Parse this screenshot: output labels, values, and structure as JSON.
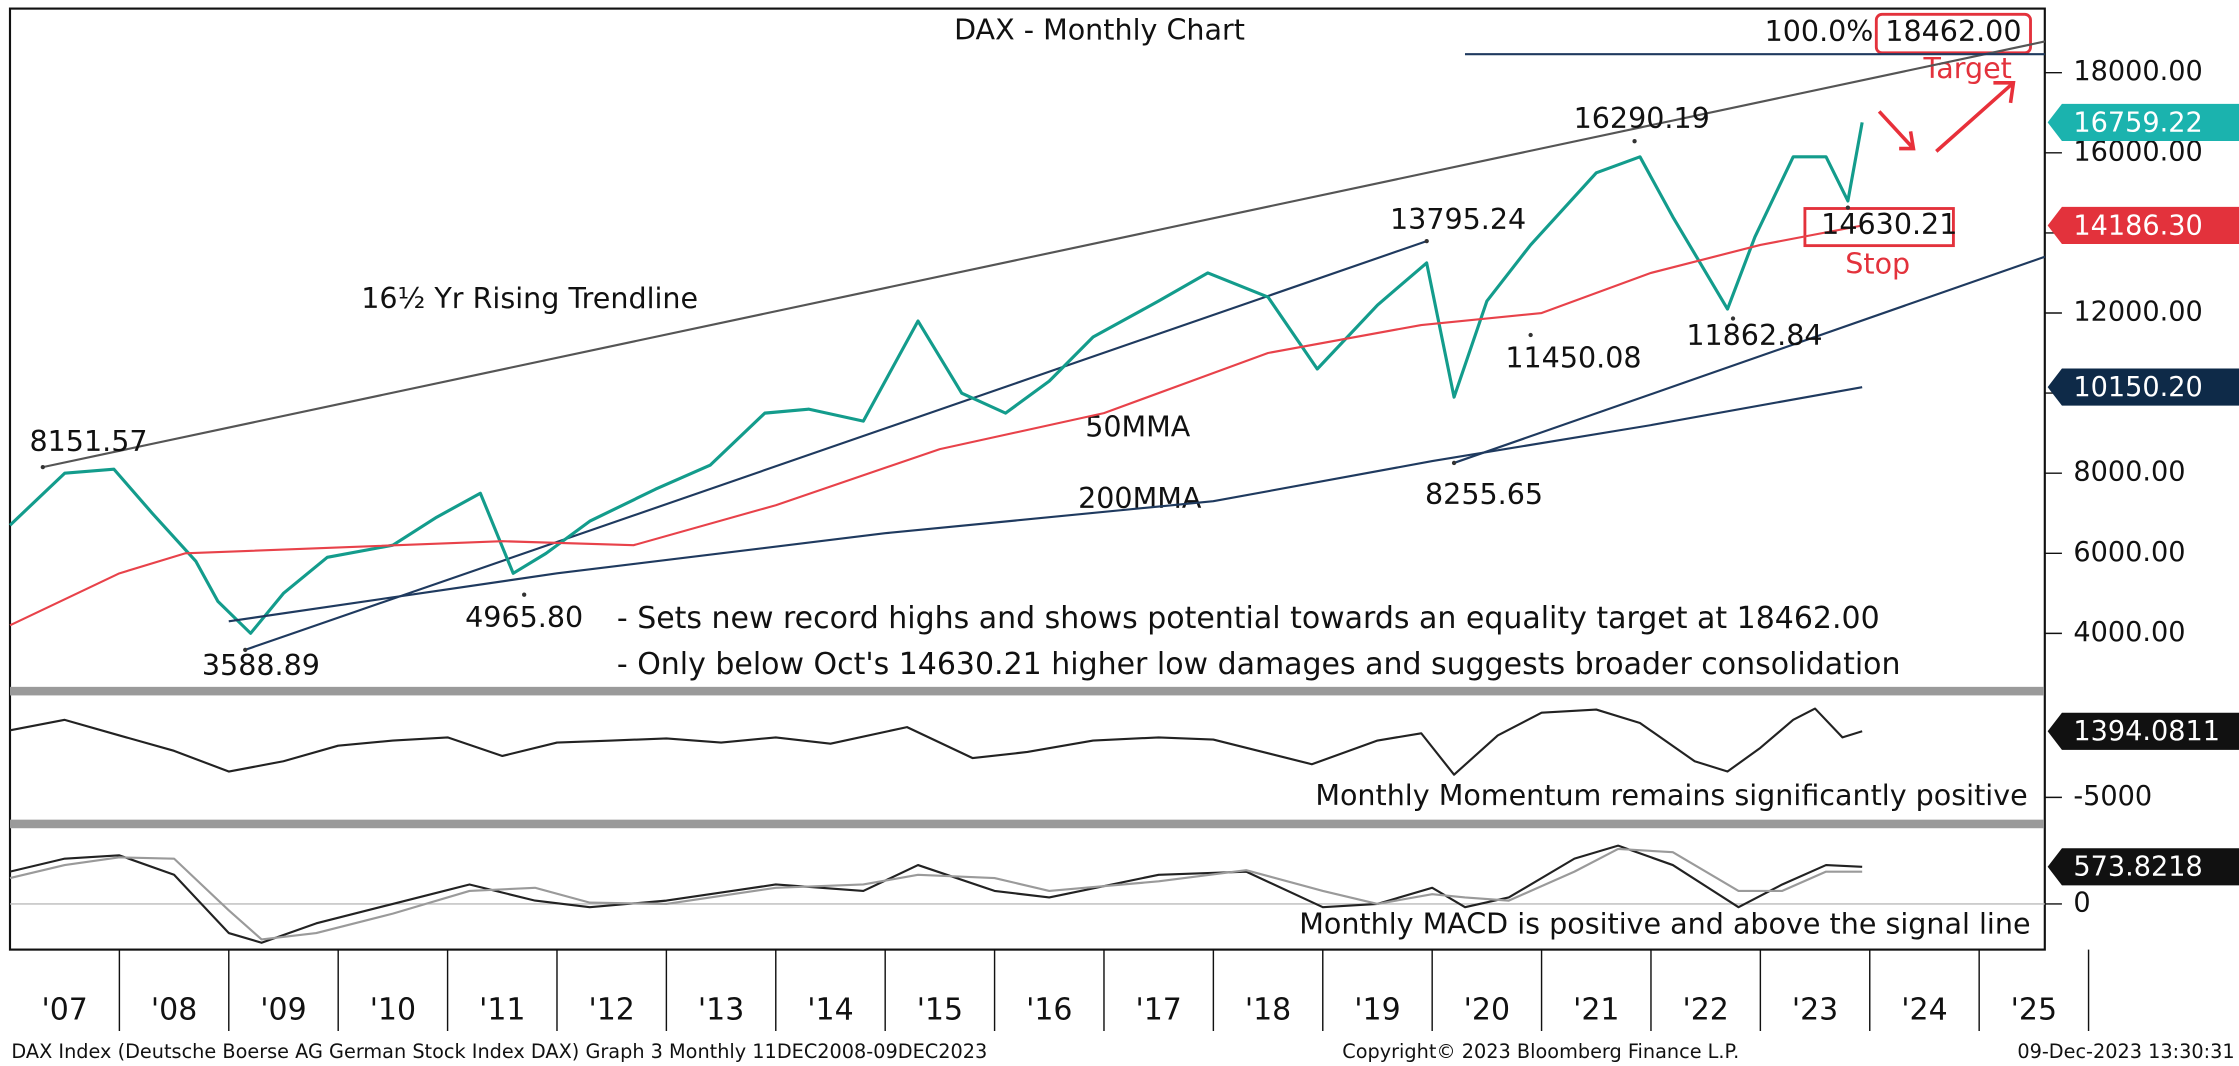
{
  "chart_data": [
    {
      "type": "line",
      "title": "DAX - Monthly Chart",
      "xlim": [
        2007.0,
        2025.6
      ],
      "ylim": [
        2700,
        19530
      ],
      "yticks": [
        {
          "value": 4000,
          "label": "4000.00"
        },
        {
          "value": 6000,
          "label": "6000.00"
        },
        {
          "value": 8000,
          "label": "8000.00"
        },
        {
          "value": 10000,
          "label": "10000.00"
        },
        {
          "value": 12000,
          "label": "12000.00"
        },
        {
          "value": 14000,
          "label": "14000.00"
        },
        {
          "value": 16000,
          "label": "16000.00"
        },
        {
          "value": 18000,
          "label": "18000.00"
        }
      ],
      "series": [
        {
          "color": "#139c8c",
          "x": [
            2007.0,
            2007.5,
            2007.95,
            2008.3,
            2008.7,
            2008.9,
            2009.2,
            2009.5,
            2009.9,
            2010.5,
            2010.9,
            2011.3,
            2011.6,
            2011.9,
            2012.3,
            2012.9,
            2013.4,
            2013.9,
            2014.3,
            2014.8,
            2015.3,
            2015.7,
            2016.1,
            2016.5,
            2016.9,
            2017.5,
            2017.95,
            2018.5,
            2018.95,
            2019.5,
            2019.95,
            2020.2,
            2020.5,
            2020.9,
            2021.5,
            2021.9,
            2022.2,
            2022.7,
            2022.95,
            2023.3,
            2023.6,
            2023.8,
            2023.93
          ],
          "values": [
            6700,
            8000,
            8100,
            7000,
            5800,
            4800,
            4000,
            5000,
            5900,
            6200,
            6900,
            7500,
            5500,
            6000,
            6800,
            7600,
            8200,
            9500,
            9600,
            9300,
            11800,
            10000,
            9500,
            10300,
            11400,
            12300,
            13000,
            12400,
            10600,
            12200,
            13250,
            9900,
            12300,
            13700,
            15500,
            15900,
            14400,
            12100,
            13900,
            15900,
            15900,
            14800,
            16759.22
          ]
        },
        {
          "name": "50MMA",
          "color": "#e8424a",
          "x": [
            2007.0,
            2008.0,
            2008.6,
            2011.5,
            2012.7,
            2014.0,
            2015.5,
            2017.0,
            2018.5,
            2019.9,
            2021.0,
            2022.0,
            2023.0,
            2023.93
          ],
          "values": [
            4200,
            5500,
            6000,
            6300,
            6200,
            7200,
            8600,
            9500,
            11000,
            11700,
            12000,
            13000,
            13700,
            14186.3
          ]
        },
        {
          "name": "200MMA",
          "color": "#1f3a5f",
          "x": [
            2009.0,
            2012.0,
            2015.0,
            2018.0,
            2020.0,
            2022.0,
            2023.93
          ],
          "values": [
            4300,
            5500,
            6500,
            7300,
            8300,
            9200,
            10150.2
          ]
        }
      ],
      "trendlines": [
        {
          "color": "#555555",
          "x": [
            2007.3,
            2025.6
          ],
          "values": [
            8151.57,
            18780
          ]
        },
        {
          "color": "#1f3a5f",
          "x": [
            2009.15,
            2019.95
          ],
          "values": [
            3588.89,
            13795.24
          ]
        },
        {
          "color": "#1f3a5f",
          "x": [
            2020.2,
            2025.6
          ],
          "values": [
            8255.65,
            13405
          ]
        },
        {
          "color": "#1f3a5f",
          "x": [
            2020.3,
            2025.6
          ],
          "values": [
            18462,
            18462
          ]
        }
      ],
      "points": [
        {
          "x": 2007.3,
          "value": 8151.57
        },
        {
          "x": 2009.15,
          "value": 3588.89
        },
        {
          "x": 2011.7,
          "value": 4965.8,
          "label": "4965.80"
        },
        {
          "x": 2019.95,
          "value": 13795.24
        },
        {
          "x": 2021.85,
          "value": 16290.19
        },
        {
          "x": 2020.9,
          "value": 11450.08
        },
        {
          "x": 2020.2,
          "value": 8255.65
        },
        {
          "x": 2022.75,
          "value": 11862.84
        },
        {
          "x": 2023.8,
          "value": 14630.21
        }
      ],
      "tags": [
        {
          "value": 16759.22,
          "label": "16759.22",
          "color": "#1bb3ae"
        },
        {
          "value": 14186.3,
          "label": "14186.30",
          "color": "#e3323c"
        },
        {
          "value": 10150.2,
          "label": "10150.20",
          "color": "#0e2a48"
        }
      ],
      "target": {
        "label": "100.0%",
        "value": 18462,
        "value_label": "18462.00",
        "note": "Target"
      },
      "stop_note": "Stop",
      "trendline_label": "16½ Yr Rising Trendline",
      "comments": [
        "- Sets new record highs and shows potential towards an equality target at 18462.00",
        "- Only below Oct's 14630.21 higher low damages and suggests broader consolidation"
      ]
    },
    {
      "type": "line",
      "caption": "Monthly Momentum remains significantly positive",
      "xlim": [
        2007.0,
        2025.6
      ],
      "ylim": [
        -7160,
        4730
      ],
      "yticks": [
        -5000
      ],
      "series": [
        {
          "color": "#222222",
          "x": [
            2007.0,
            2007.5,
            2008.0,
            2008.5,
            2009.0,
            2009.5,
            2010.0,
            2010.5,
            2011.0,
            2011.5,
            2012.0,
            2012.5,
            2013.0,
            2013.5,
            2014.0,
            2014.5,
            2015.2,
            2015.8,
            2016.3,
            2016.9,
            2017.5,
            2018.0,
            2018.9,
            2019.5,
            2019.9,
            2020.2,
            2020.6,
            2021.0,
            2021.5,
            2021.9,
            2022.4,
            2022.7,
            2023.0,
            2023.3,
            2023.5,
            2023.75,
            2023.93
          ],
          "values": [
            1500,
            2500,
            1000,
            -500,
            -2500,
            -1500,
            0,
            500,
            800,
            -1000,
            300,
            500,
            700,
            300,
            800,
            200,
            1800,
            -1200,
            -600,
            500,
            800,
            600,
            -1800,
            500,
            1200,
            -2800,
            1000,
            3200,
            3500,
            2200,
            -1500,
            -2500,
            -200,
            2500,
            3600,
            800,
            1394.0811
          ]
        }
      ],
      "tag": {
        "value": 1394.0811,
        "color": "#111111"
      }
    },
    {
      "type": "line",
      "caption": "Monthly MACD is positive and above the signal line",
      "xlim": [
        2007.0,
        2025.6
      ],
      "ylim": [
        -662,
        1170
      ],
      "yticks": [
        0
      ],
      "series": [
        {
          "color": "#222222",
          "x": [
            2007.0,
            2007.5,
            2008.0,
            2008.5,
            2009.0,
            2009.3,
            2009.8,
            2010.5,
            2011.2,
            2011.8,
            2012.3,
            2013.0,
            2014.0,
            2014.8,
            2015.3,
            2016.0,
            2016.5,
            2017.5,
            2018.3,
            2019.0,
            2019.5,
            2020.0,
            2020.3,
            2020.7,
            2021.3,
            2021.7,
            2022.2,
            2022.8,
            2023.2,
            2023.6,
            2023.93
          ],
          "values": [
            500,
            700,
            750,
            450,
            -450,
            -600,
            -300,
            0,
            300,
            50,
            -50,
            50,
            300,
            200,
            600,
            200,
            100,
            450,
            500,
            -50,
            0,
            250,
            -50,
            100,
            700,
            900,
            600,
            -50,
            300,
            600,
            573.8218
          ]
        },
        {
          "color": "#9a9a9a",
          "x": [
            2007.0,
            2007.5,
            2008.0,
            2008.5,
            2009.0,
            2009.3,
            2009.8,
            2010.5,
            2011.2,
            2011.8,
            2012.3,
            2013.0,
            2014.0,
            2014.8,
            2015.3,
            2016.0,
            2016.5,
            2017.5,
            2018.3,
            2019.0,
            2019.5,
            2020.0,
            2020.3,
            2020.7,
            2021.3,
            2021.7,
            2022.2,
            2022.8,
            2023.2,
            2023.6,
            2023.93
          ],
          "values": [
            400,
            600,
            720,
            700,
            -100,
            -550,
            -450,
            -150,
            200,
            250,
            20,
            0,
            250,
            300,
            450,
            400,
            200,
            350,
            520,
            200,
            0,
            150,
            100,
            50,
            500,
            850,
            800,
            200,
            200,
            500,
            500
          ]
        }
      ],
      "tag": {
        "value": 573.8218,
        "color": "#111111"
      },
      "xticks": [
        {
          "value": 2007.5,
          "label": "'07"
        },
        {
          "value": 2008.5,
          "label": "'08"
        },
        {
          "value": 2009.5,
          "label": "'09"
        },
        {
          "value": 2010.5,
          "label": "'10"
        },
        {
          "value": 2011.5,
          "label": "'11"
        },
        {
          "value": 2012.5,
          "label": "'12"
        },
        {
          "value": 2013.5,
          "label": "'13"
        },
        {
          "value": 2014.5,
          "label": "'14"
        },
        {
          "value": 2015.5,
          "label": "'15"
        },
        {
          "value": 2016.5,
          "label": "'16"
        },
        {
          "value": 2017.5,
          "label": "'17"
        },
        {
          "value": 2018.5,
          "label": "'18"
        },
        {
          "value": 2019.5,
          "label": "'19"
        },
        {
          "value": 2020.5,
          "label": "'20"
        },
        {
          "value": 2021.5,
          "label": "'21"
        },
        {
          "value": 2022.5,
          "label": "'22"
        },
        {
          "value": 2023.5,
          "label": "'23"
        },
        {
          "value": 2024.5,
          "label": "'24"
        },
        {
          "value": 2025.5,
          "label": "'25"
        }
      ]
    }
  ],
  "footer": {
    "left": "DAX Index (Deutsche Boerse AG German Stock Index DAX) Graph 3  Monthly 11DEC2008-09DEC2023",
    "middle": "Copyright© 2023 Bloomberg Finance L.P.",
    "right": "09-Dec-2023 13:30:31"
  }
}
